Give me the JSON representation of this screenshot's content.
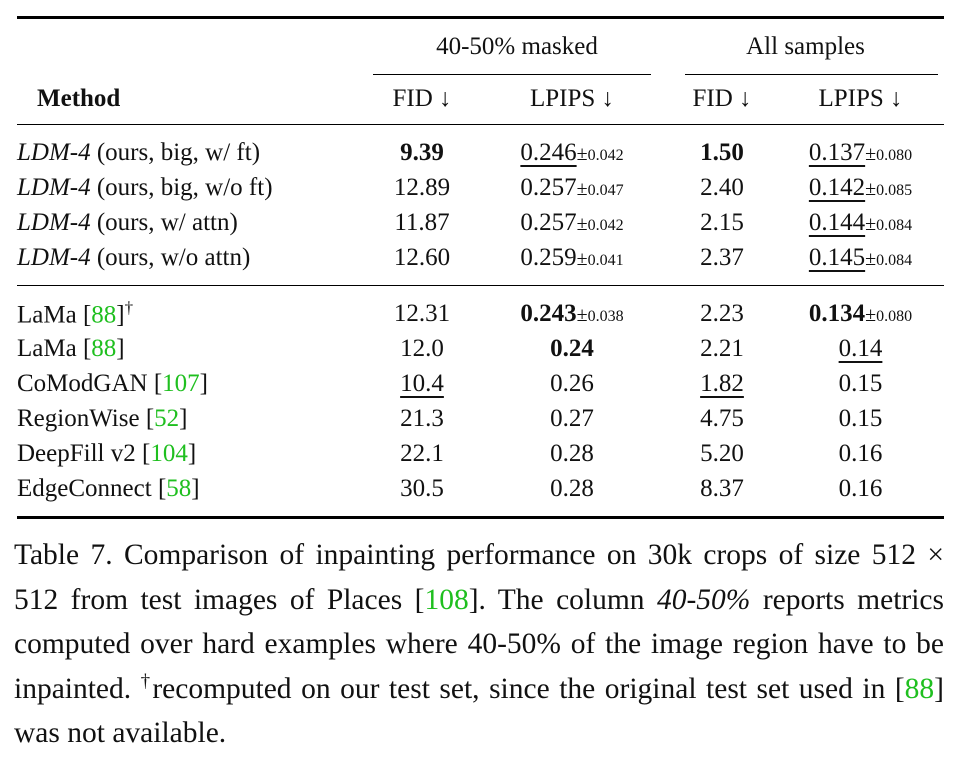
{
  "table": {
    "group_headers": [
      "40-50% masked",
      "All samples"
    ],
    "column_headers": [
      "Method",
      "FID ↓",
      "LPIPS ↓",
      "FID ↓",
      "LPIPS ↓"
    ],
    "pm": "±",
    "rows": [
      {
        "name_it": "LDM-4",
        "name_rest": " (ours, big, w/ ft)",
        "ref": "",
        "dagger": "",
        "fid1": "9.39",
        "lp1": "0.246",
        "lp1_std": "0.042",
        "fid2": "1.50",
        "lp2": "0.137",
        "lp2_std": "0.080"
      },
      {
        "name_it": "LDM-4",
        "name_rest": " (ours, big, w/o ft)",
        "ref": "",
        "dagger": "",
        "fid1": "12.89",
        "lp1": "0.257",
        "lp1_std": "0.047",
        "fid2": "2.40",
        "lp2": "0.142",
        "lp2_std": "0.085"
      },
      {
        "name_it": "LDM-4",
        "name_rest": " (ours, w/ attn)",
        "ref": "",
        "dagger": "",
        "fid1": "11.87",
        "lp1": "0.257",
        "lp1_std": "0.042",
        "fid2": "2.15",
        "lp2": "0.144",
        "lp2_std": "0.084"
      },
      {
        "name_it": "LDM-4",
        "name_rest": " (ours, w/o attn)",
        "ref": "",
        "dagger": "",
        "fid1": "12.60",
        "lp1": "0.259",
        "lp1_std": "0.041",
        "fid2": "2.37",
        "lp2": "0.145",
        "lp2_std": "0.084"
      },
      {
        "name_it": "",
        "name_rest": "LaMa ",
        "ref": "88",
        "dagger": "†",
        "fid1": "12.31",
        "lp1": "0.243",
        "lp1_std": "0.038",
        "fid2": "2.23",
        "lp2": "0.134",
        "lp2_std": "0.080"
      },
      {
        "name_it": "",
        "name_rest": "LaMa ",
        "ref": "88",
        "dagger": "",
        "fid1": "12.0",
        "lp1": "0.24",
        "lp1_std": "",
        "fid2": "2.21",
        "lp2": "0.14",
        "lp2_std": ""
      },
      {
        "name_it": "",
        "name_rest": "CoModGAN ",
        "ref": "107",
        "dagger": "",
        "fid1": "10.4",
        "lp1": "0.26",
        "lp1_std": "",
        "fid2": "1.82",
        "lp2": "0.15",
        "lp2_std": ""
      },
      {
        "name_it": "",
        "name_rest": "RegionWise ",
        "ref": "52",
        "dagger": "",
        "fid1": "21.3",
        "lp1": "0.27",
        "lp1_std": "",
        "fid2": "4.75",
        "lp2": "0.15",
        "lp2_std": ""
      },
      {
        "name_it": "",
        "name_rest": "DeepFill v2 ",
        "ref": "104",
        "dagger": "",
        "fid1": "22.1",
        "lp1": "0.28",
        "lp1_std": "",
        "fid2": "5.20",
        "lp2": "0.16",
        "lp2_std": ""
      },
      {
        "name_it": "",
        "name_rest": "EdgeConnect ",
        "ref": "58",
        "dagger": "",
        "fid1": "30.5",
        "lp1": "0.28",
        "lp1_std": "",
        "fid2": "8.37",
        "lp2": "0.16",
        "lp2_std": ""
      }
    ]
  },
  "caption": {
    "label": "Table 7.",
    "p1": " Comparison of inpainting performance on 30k crops of size 512 × 512 from test images of Places [",
    "ref1": "108",
    "p2": "]. The column ",
    "p2_it": "40-50%",
    "p3": " reports metrics computed over hard examples where 40-50% of the image region have to be inpainted. ",
    "dagger": "†",
    "p4": "recomputed on our test set, since the original test set used in [",
    "ref2": "88",
    "p5": "] was not available."
  },
  "colors": {
    "reference": "#1fbf1f",
    "text": "#111111"
  }
}
